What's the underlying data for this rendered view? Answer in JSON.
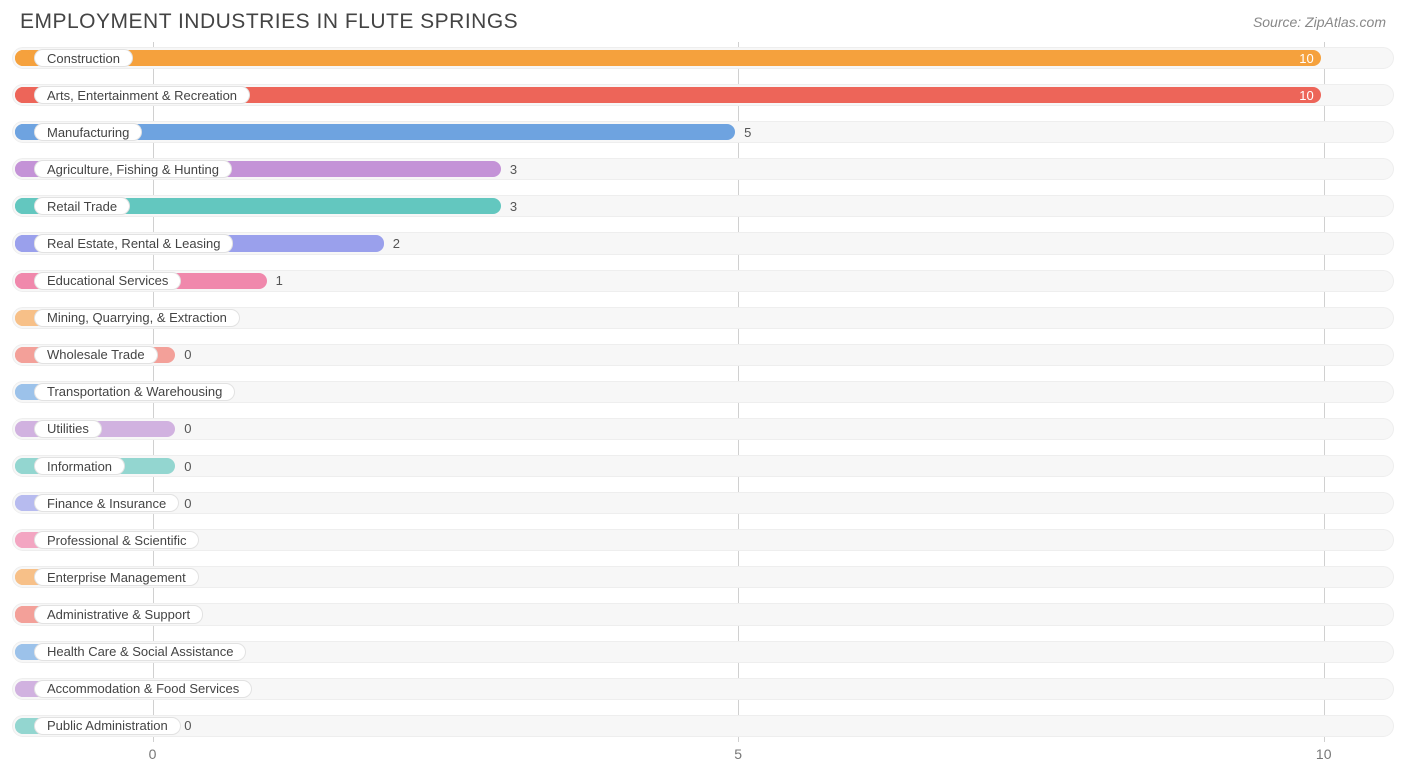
{
  "title": "EMPLOYMENT INDUSTRIES IN FLUTE SPRINGS",
  "source": "Source: ZipAtlas.com",
  "chart": {
    "type": "bar-horizontal",
    "xmin": -1.2,
    "xmax": 10.6,
    "xticks": [
      0,
      5,
      10
    ],
    "track_bg": "#f7f7f7",
    "track_border": "#eeeeee",
    "grid_color": "#d0d0d0",
    "label_fontsize": 13,
    "title_fontsize": 21,
    "min_bar_value": 0.22,
    "bars": [
      {
        "label": "Construction",
        "value": 10,
        "color": "#f5a13d"
      },
      {
        "label": "Arts, Entertainment & Recreation",
        "value": 10,
        "color": "#ed6559"
      },
      {
        "label": "Manufacturing",
        "value": 5,
        "color": "#6ea3e0"
      },
      {
        "label": "Agriculture, Fishing & Hunting",
        "value": 3,
        "color": "#c493d7"
      },
      {
        "label": "Retail Trade",
        "value": 3,
        "color": "#63c7bf"
      },
      {
        "label": "Real Estate, Rental & Leasing",
        "value": 2,
        "color": "#9aa0ec"
      },
      {
        "label": "Educational Services",
        "value": 1,
        "color": "#f088ac"
      },
      {
        "label": "Mining, Quarrying, & Extraction",
        "value": 0,
        "color": "#f7c088"
      },
      {
        "label": "Wholesale Trade",
        "value": 0,
        "color": "#f3a099"
      },
      {
        "label": "Transportation & Warehousing",
        "value": 0,
        "color": "#9cc2ea"
      },
      {
        "label": "Utilities",
        "value": 0,
        "color": "#d1b2e0"
      },
      {
        "label": "Information",
        "value": 0,
        "color": "#93d6d0"
      },
      {
        "label": "Finance & Insurance",
        "value": 0,
        "color": "#b7bbef"
      },
      {
        "label": "Professional & Scientific",
        "value": 0,
        "color": "#f3a6c2"
      },
      {
        "label": "Enterprise Management",
        "value": 0,
        "color": "#f7c088"
      },
      {
        "label": "Administrative & Support",
        "value": 0,
        "color": "#f3a099"
      },
      {
        "label": "Health Care & Social Assistance",
        "value": 0,
        "color": "#9cc2ea"
      },
      {
        "label": "Accommodation & Food Services",
        "value": 0,
        "color": "#d1b2e0"
      },
      {
        "label": "Public Administration",
        "value": 0,
        "color": "#93d6d0"
      }
    ]
  }
}
